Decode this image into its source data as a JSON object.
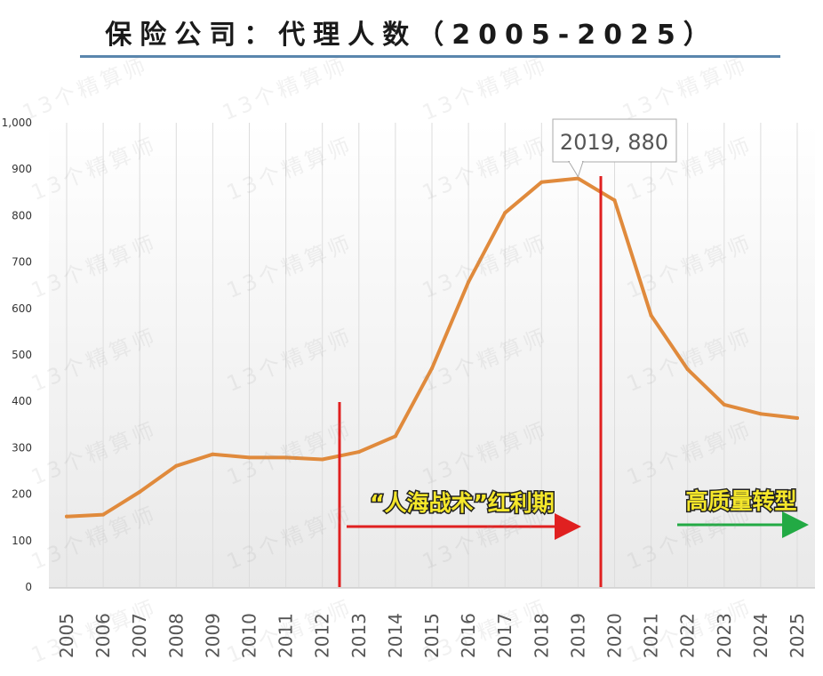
{
  "title": "保险公司：代理人数（2005-2025）",
  "watermark_text": "13个精算师",
  "colors": {
    "line": "#e08a3c",
    "divider": "#e02020",
    "arrow_red": "#e02020",
    "arrow_green": "#22aa44",
    "rule": "#5a86ad",
    "annotation_text": "#f5e72a"
  },
  "chart_data": {
    "type": "line",
    "title": "保险公司：代理人数（2005-2025）",
    "xlabel": "",
    "ylabel": "",
    "ylim": [
      0,
      1000
    ],
    "y_ticks": [
      "0",
      "100",
      "200",
      "300",
      "400",
      "500",
      "600",
      "700",
      "800",
      "900",
      "1,000"
    ],
    "grid": "vertical",
    "x": [
      "2005",
      "2006",
      "2007",
      "2008",
      "2009",
      "2010",
      "2011",
      "2012",
      "2013",
      "2014",
      "2015",
      "2016",
      "2017",
      "2018",
      "2019",
      "2020",
      "2021",
      "2022",
      "2023",
      "2024",
      "2025"
    ],
    "series": [
      {
        "values": [
          152,
          156,
          205,
          261,
          286,
          279,
          279,
          275,
          291,
          325,
          471,
          657,
          806,
          872,
          880,
          833,
          585,
          469,
          393,
          373,
          364
        ]
      }
    ],
    "callout": {
      "x": "2019",
      "y": 880,
      "label": "2019, 880"
    },
    "annotations": [
      {
        "text": "“人海战术”红利期",
        "arrow_color": "red"
      },
      {
        "text": "高质量转型",
        "arrow_color": "green"
      }
    ]
  }
}
